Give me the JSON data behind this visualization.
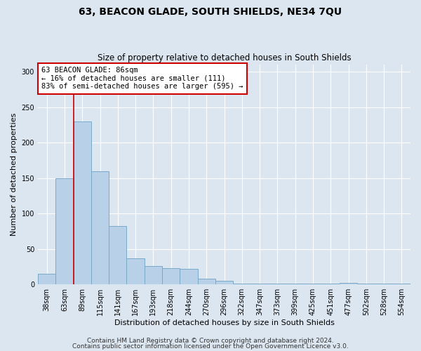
{
  "title": "63, BEACON GLADE, SOUTH SHIELDS, NE34 7QU",
  "subtitle": "Size of property relative to detached houses in South Shields",
  "xlabel": "Distribution of detached houses by size in South Shields",
  "ylabel": "Number of detached properties",
  "categories": [
    "38sqm",
    "63sqm",
    "89sqm",
    "115sqm",
    "141sqm",
    "167sqm",
    "193sqm",
    "218sqm",
    "244sqm",
    "270sqm",
    "296sqm",
    "322sqm",
    "347sqm",
    "373sqm",
    "399sqm",
    "425sqm",
    "451sqm",
    "477sqm",
    "502sqm",
    "528sqm",
    "554sqm"
  ],
  "values": [
    15,
    150,
    230,
    160,
    82,
    37,
    26,
    23,
    22,
    8,
    5,
    1,
    1,
    1,
    1,
    1,
    1,
    2,
    1,
    1,
    1
  ],
  "bar_color": "#b8d0e8",
  "bar_edge_color": "#7aaac8",
  "bar_linewidth": 0.7,
  "marker_color": "#cc0000",
  "marker_linewidth": 1.2,
  "annotation_text": "63 BEACON GLADE: 86sqm\n← 16% of detached houses are smaller (111)\n83% of semi-detached houses are larger (595) →",
  "annotation_box_color": "#ffffff",
  "annotation_box_edge": "#cc0000",
  "ylim": [
    0,
    310
  ],
  "yticks": [
    0,
    50,
    100,
    150,
    200,
    250,
    300
  ],
  "plot_bg_color": "#dce6f0",
  "fig_bg_color": "#dce6f0",
  "footer_line1": "Contains HM Land Registry data © Crown copyright and database right 2024.",
  "footer_line2": "Contains public sector information licensed under the Open Government Licence v3.0.",
  "title_fontsize": 10,
  "subtitle_fontsize": 8.5,
  "xlabel_fontsize": 8,
  "ylabel_fontsize": 8,
  "tick_fontsize": 7,
  "footer_fontsize": 6.5,
  "annot_fontsize": 7.5
}
